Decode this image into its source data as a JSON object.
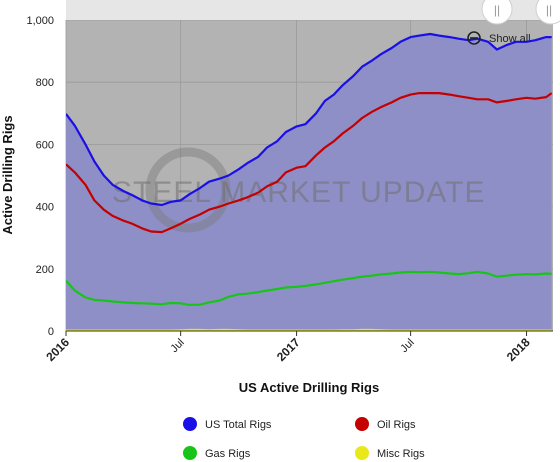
{
  "colors": {
    "plot_bg": "#b3b3b3",
    "area_fill": "#8f8fc8",
    "us_total": "#1a10e6",
    "oil": "#c40000",
    "gas": "#18c418",
    "misc": "#e8e81a"
  },
  "controls": {
    "show_all_label": "Show all",
    "zoom_icon": "zoom-out-icon"
  },
  "watermark": "STEEL MARKET UPDATE",
  "chart_data": {
    "type": "line",
    "title": "US Active Drilling Rigs",
    "xlabel": "",
    "ylabel": "Active Drilling Rigs",
    "ylim": [
      0,
      1000
    ],
    "yticks": [
      "0",
      "200",
      "400",
      "600",
      "800",
      "1,000"
    ],
    "grid": true,
    "legend_position": "bottom",
    "xticks": [
      {
        "date": "2016-01-01",
        "label": "2016",
        "bold": true
      },
      {
        "date": "2016-07-01",
        "label": "Jul",
        "bold": false
      },
      {
        "date": "2017-01-01",
        "label": "2017",
        "bold": true
      },
      {
        "date": "2017-07-01",
        "label": "Jul",
        "bold": false
      },
      {
        "date": "2018-01-01",
        "label": "2018",
        "bold": true
      }
    ],
    "x": [
      "2016-01-01",
      "2016-01-15",
      "2016-02-01",
      "2016-02-15",
      "2016-03-01",
      "2016-03-15",
      "2016-04-01",
      "2016-04-15",
      "2016-05-01",
      "2016-05-15",
      "2016-06-01",
      "2016-06-15",
      "2016-07-01",
      "2016-07-15",
      "2016-08-01",
      "2016-08-15",
      "2016-09-01",
      "2016-09-15",
      "2016-10-01",
      "2016-10-15",
      "2016-11-01",
      "2016-11-15",
      "2016-12-01",
      "2016-12-15",
      "2017-01-01",
      "2017-01-15",
      "2017-02-01",
      "2017-02-15",
      "2017-03-01",
      "2017-03-15",
      "2017-04-01",
      "2017-04-15",
      "2017-05-01",
      "2017-05-15",
      "2017-06-01",
      "2017-06-15",
      "2017-07-01",
      "2017-07-15",
      "2017-08-01",
      "2017-08-15",
      "2017-09-01",
      "2017-09-15",
      "2017-10-01",
      "2017-10-15",
      "2017-11-01",
      "2017-11-15",
      "2017-12-01",
      "2017-12-15",
      "2018-01-01",
      "2018-01-15",
      "2018-02-01",
      "2018-02-10"
    ],
    "series": [
      {
        "name": "US Total Rigs",
        "color_key": "us_total",
        "values": [
          698,
          660,
          600,
          545,
          500,
          470,
          450,
          437,
          420,
          410,
          405,
          415,
          420,
          440,
          460,
          480,
          490,
          500,
          520,
          540,
          560,
          590,
          610,
          640,
          658,
          665,
          700,
          740,
          760,
          790,
          820,
          850,
          870,
          890,
          910,
          930,
          945,
          950,
          955,
          950,
          945,
          940,
          935,
          940,
          930,
          905,
          920,
          930,
          930,
          935,
          945,
          945
        ]
      },
      {
        "name": "Oil Rigs",
        "color_key": "oil",
        "values": [
          536,
          510,
          470,
          420,
          390,
          370,
          355,
          345,
          330,
          320,
          318,
          330,
          345,
          360,
          375,
          390,
          400,
          410,
          420,
          430,
          445,
          465,
          480,
          510,
          525,
          530,
          565,
          590,
          610,
          635,
          660,
          685,
          705,
          720,
          735,
          750,
          760,
          765,
          765,
          765,
          760,
          755,
          750,
          745,
          745,
          735,
          740,
          745,
          750,
          747,
          752,
          765
        ]
      },
      {
        "name": "Gas Rigs",
        "color_key": "gas",
        "values": [
          162,
          130,
          108,
          100,
          98,
          95,
          92,
          90,
          89,
          88,
          86,
          90,
          89,
          84,
          85,
          92,
          98,
          110,
          118,
          120,
          125,
          130,
          135,
          140,
          142,
          145,
          150,
          155,
          160,
          165,
          170,
          175,
          178,
          182,
          185,
          188,
          190,
          189,
          190,
          188,
          185,
          183,
          186,
          190,
          185,
          175,
          178,
          181,
          183,
          182,
          185,
          184
        ]
      },
      {
        "name": "Misc Rigs",
        "color_key": "misc",
        "values": [
          0,
          0,
          0,
          0,
          0,
          0,
          0,
          0,
          0,
          0,
          0,
          0,
          1,
          2,
          2,
          1,
          2,
          2,
          1,
          0,
          0,
          0,
          0,
          0,
          0,
          0,
          0,
          0,
          0,
          1,
          1,
          2,
          2,
          1,
          0,
          0,
          0,
          0,
          0,
          0,
          0,
          0,
          0,
          0,
          0,
          0,
          0,
          0,
          0,
          0,
          0,
          0
        ]
      }
    ]
  },
  "legend": [
    {
      "label": "US Total Rigs",
      "color_key": "us_total"
    },
    {
      "label": "Oil Rigs",
      "color_key": "oil"
    },
    {
      "label": "Gas Rigs",
      "color_key": "gas"
    },
    {
      "label": "Misc Rigs",
      "color_key": "misc"
    }
  ]
}
